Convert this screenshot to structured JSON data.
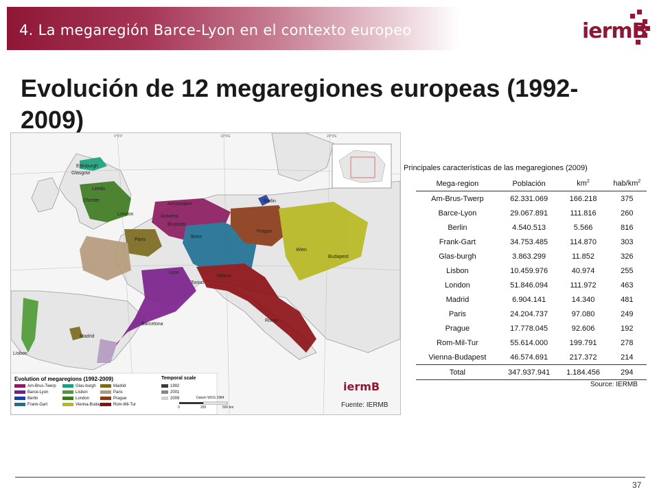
{
  "header": {
    "section_title": "4. La megaregión Barce-Lyon en el contexto europeo",
    "logo_text": "iermB"
  },
  "slide": {
    "title": "Evolución de 12 megaregiones europeas (1992-2009)"
  },
  "map": {
    "city_labels": [
      "Edinburgh",
      "Glasgow",
      "Leeds",
      "Chester",
      "London",
      "Amsterdam",
      "Antwerp",
      "Brussels",
      "Berlin",
      "Prague",
      "Wien",
      "Budapest",
      "Lyon",
      "Torino",
      "Milano",
      "Roma",
      "Barcelona",
      "Madrid",
      "Lisbon",
      "Paris",
      "Bonn"
    ],
    "legend_title": "Evolution of megaregions (1992-2009)",
    "legend_items": [
      {
        "label": "Am-Brus-Twerp",
        "color": "#8b1a5e"
      },
      {
        "label": "Barce-Lyon",
        "color": "#7a1e8c"
      },
      {
        "label": "Berlin",
        "color": "#1f3f9e"
      },
      {
        "label": "Frank-Gart",
        "color": "#1e6f94"
      },
      {
        "label": "Glas-burgh",
        "color": "#1aa07a"
      },
      {
        "label": "Lisbon",
        "color": "#4f9a35"
      },
      {
        "label": "London",
        "color": "#3d7a1e"
      },
      {
        "label": "Vienna-Budapest",
        "color": "#b8b820"
      },
      {
        "label": "Madrid",
        "color": "#7a6a1e"
      },
      {
        "label": "Paris",
        "color": "#b59a7a"
      },
      {
        "label": "Prague",
        "color": "#8a3a16"
      },
      {
        "label": "Rom-Mil-Tur",
        "color": "#8c0f14"
      }
    ],
    "temporal_title": "Temporal scale",
    "temporal_items": [
      {
        "label": "1992",
        "color": "#3a3a3a"
      },
      {
        "label": "2001",
        "color": "#888888"
      },
      {
        "label": "2009",
        "color": "#cfcfcf"
      }
    ],
    "datum_label": "Datum WGS 1984",
    "scale_labels": [
      "0",
      "250",
      "500 km"
    ],
    "grid_labels": [
      "0°0'0\"",
      "10°0'E",
      "20°0'E"
    ],
    "source": "Fuente: IERMB"
  },
  "table": {
    "caption": "Principales características de las megaregiones (2009)",
    "headers": {
      "region": "Mega-region",
      "population": "Población",
      "area": "km",
      "area_sup": "2",
      "density": "hab/km",
      "density_sup": "2"
    },
    "rows": [
      [
        "Am-Brus-Twerp",
        "62.331.069",
        "166.218",
        "375"
      ],
      [
        "Barce-Lyon",
        "29.067.891",
        "111.816",
        "260"
      ],
      [
        "Berlin",
        "4.540.513",
        "5.566",
        "816"
      ],
      [
        "Frank-Gart",
        "34.753.485",
        "114.870",
        "303"
      ],
      [
        "Glas-burgh",
        "3.863.299",
        "11.852",
        "326"
      ],
      [
        "Lisbon",
        "10.459.976",
        "40.974",
        "255"
      ],
      [
        "London",
        "51.846.094",
        "111.972",
        "463"
      ],
      [
        "Madrid",
        "6.904.141",
        "14.340",
        "481"
      ],
      [
        "Paris",
        "24.204.737",
        "97.080",
        "249"
      ],
      [
        "Prague",
        "17.778.045",
        "92.606",
        "192"
      ],
      [
        "Rom-Mil-Tur",
        "55.614.000",
        "199.791",
        "278"
      ],
      [
        "Vienna-Budapest",
        "46.574.691",
        "217.372",
        "214"
      ]
    ],
    "total": [
      "Total",
      "347.937.941",
      "1.184.456",
      "294"
    ],
    "source": "Source: IERMB"
  },
  "footer": {
    "page_number": "37"
  }
}
